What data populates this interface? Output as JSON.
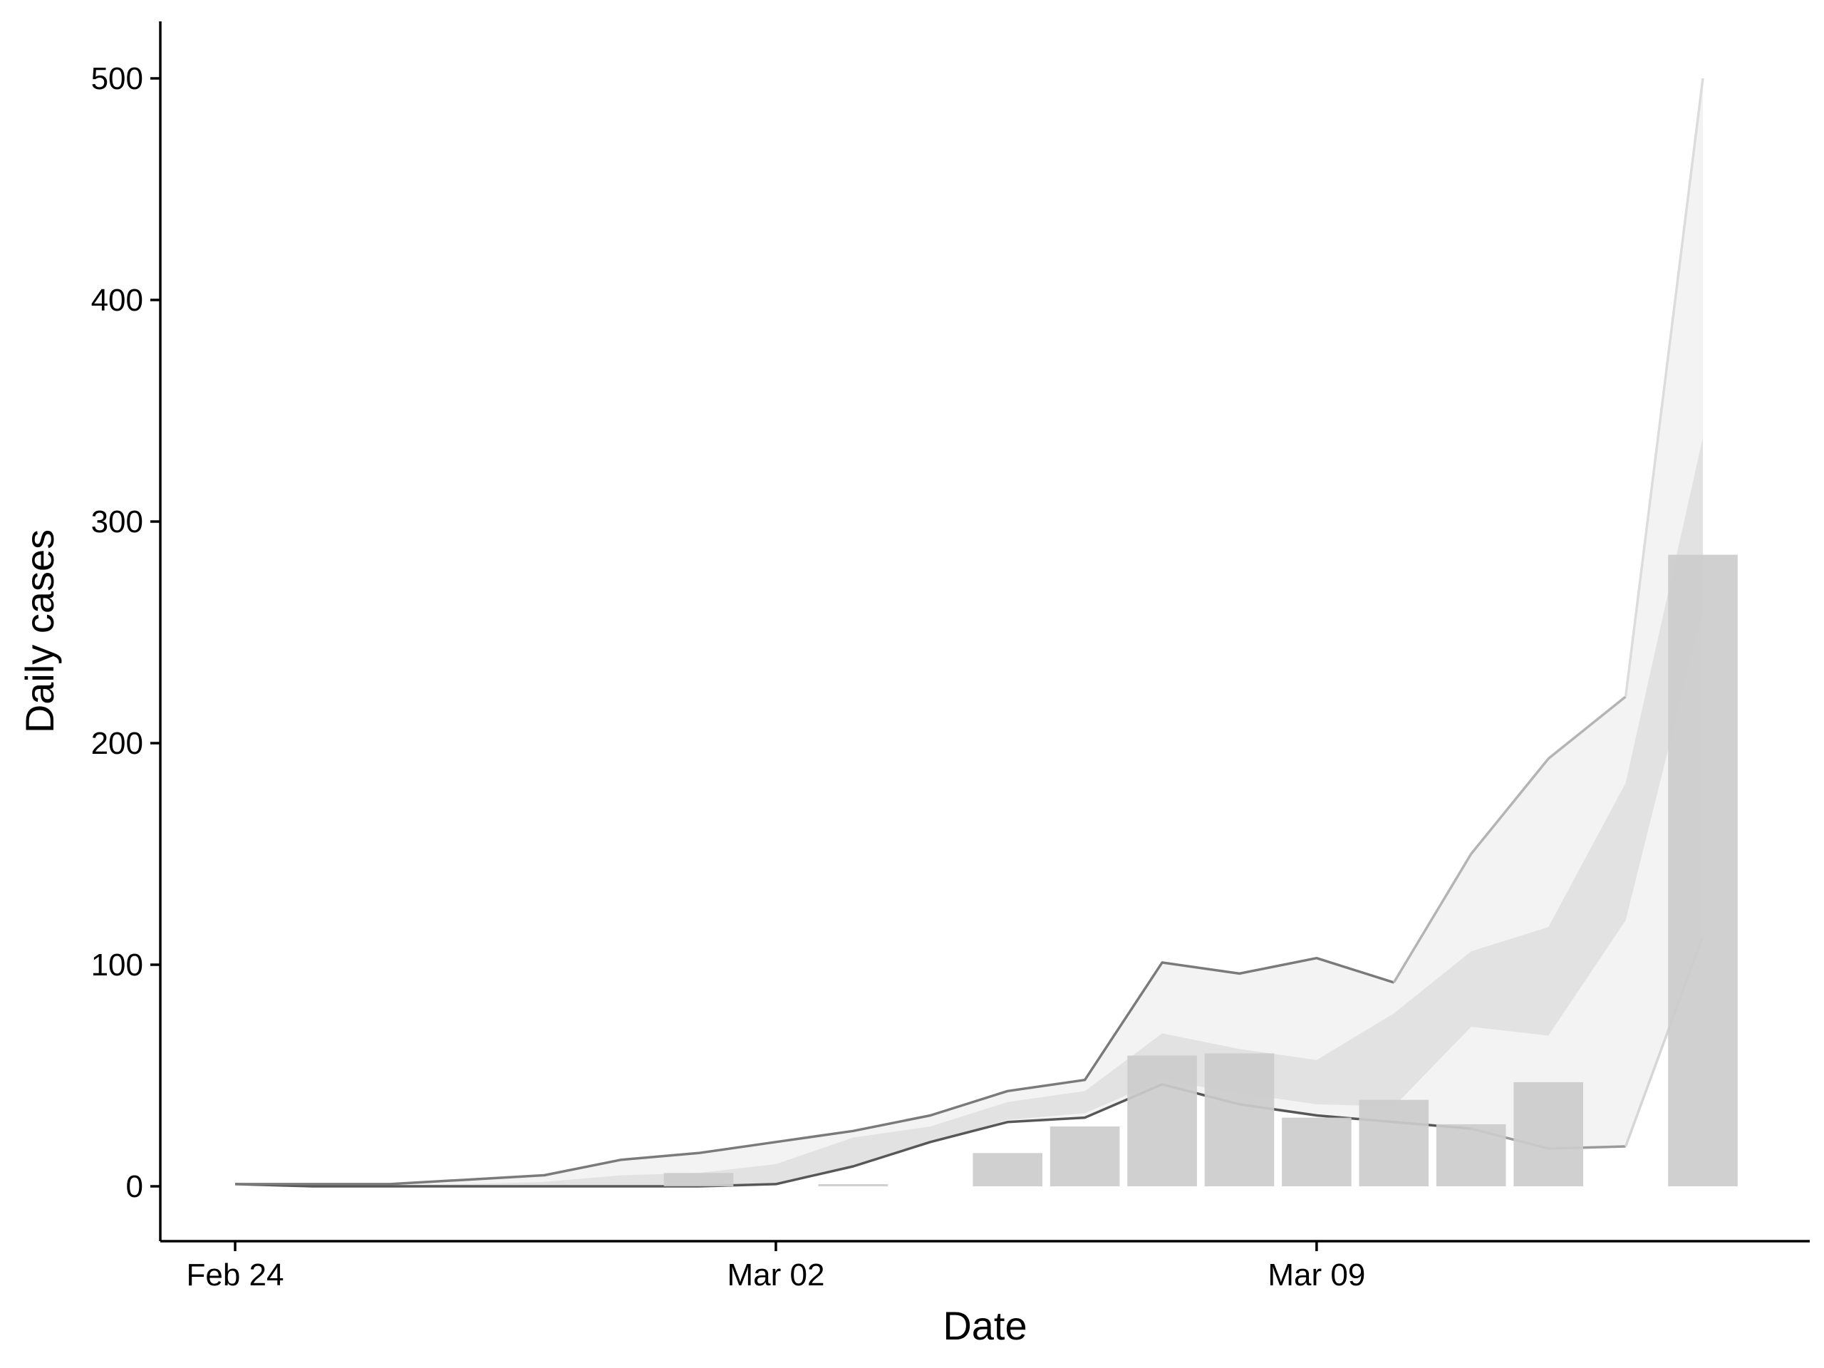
{
  "chart_data": {
    "type": "bar",
    "xlabel": "Date",
    "ylabel": "Daily cases",
    "xlim": [
      "2020-02-23",
      "2020-03-20"
    ],
    "ylim": [
      -25,
      525
    ],
    "x_ticks": [
      {
        "date": "2020-02-24",
        "label": "Feb 24"
      },
      {
        "date": "2020-03-02",
        "label": "Mar 02"
      },
      {
        "date": "2020-03-09",
        "label": "Mar 09"
      }
    ],
    "y_ticks": [
      0,
      100,
      200,
      300,
      400,
      500
    ],
    "grid": false,
    "legend": "none",
    "bars": {
      "name": "",
      "color": "#cccccc",
      "points": [
        {
          "date": "2020-03-01",
          "value": 6
        },
        {
          "date": "2020-03-02",
          "value": 0
        },
        {
          "date": "2020-03-03",
          "value": 1
        },
        {
          "date": "2020-03-05",
          "value": 15
        },
        {
          "date": "2020-03-06",
          "value": 27
        },
        {
          "date": "2020-03-07",
          "value": 59
        },
        {
          "date": "2020-03-08",
          "value": 60
        },
        {
          "date": "2020-03-09",
          "value": 31
        },
        {
          "date": "2020-03-10",
          "value": 39
        },
        {
          "date": "2020-03-11",
          "value": 28
        },
        {
          "date": "2020-03-12",
          "value": 47
        },
        {
          "date": "2020-03-14",
          "value": 285
        }
      ]
    },
    "bands": [
      {
        "name": "",
        "color": "#dcdcdc",
        "x": [
          "2020-02-24",
          "2020-02-25",
          "2020-02-26",
          "2020-02-27",
          "2020-02-28",
          "2020-02-29",
          "2020-03-01",
          "2020-03-02",
          "2020-03-03",
          "2020-03-04",
          "2020-03-05",
          "2020-03-06",
          "2020-03-07",
          "2020-03-08",
          "2020-03-09",
          "2020-03-10",
          "2020-03-11",
          "2020-03-12",
          "2020-03-13",
          "2020-03-14"
        ],
        "lower": [
          1,
          0,
          0,
          0,
          0,
          0,
          0,
          1,
          9,
          20,
          30,
          33,
          48,
          42,
          37,
          36,
          72,
          68,
          120,
          260
        ],
        "upper": [
          1,
          0.5,
          0.5,
          1,
          2,
          5,
          6,
          10,
          22,
          27,
          38,
          43,
          69,
          62,
          57,
          78,
          106,
          117,
          182,
          338
        ]
      },
      {
        "name": "",
        "color": "#efefef",
        "x": [
          "2020-02-24",
          "2020-02-25",
          "2020-02-26",
          "2020-02-27",
          "2020-02-28",
          "2020-02-29",
          "2020-03-01",
          "2020-03-02",
          "2020-03-03",
          "2020-03-04",
          "2020-03-05",
          "2020-03-06",
          "2020-03-07",
          "2020-03-08",
          "2020-03-09",
          "2020-03-10",
          "2020-03-11",
          "2020-03-12",
          "2020-03-13",
          "2020-03-14"
        ],
        "lower": [
          1,
          0,
          0,
          0,
          0,
          0,
          0,
          1,
          9,
          20,
          29,
          31,
          46,
          37,
          32,
          29,
          26,
          17,
          18,
          113
        ],
        "upper": [
          1,
          1,
          1,
          3,
          5,
          12,
          15,
          20,
          25,
          32,
          43,
          48,
          101,
          96,
          103,
          92,
          150,
          193,
          221,
          500
        ]
      }
    ],
    "lines": [
      {
        "name": "",
        "color": "#575757",
        "x": [
          "2020-02-24",
          "2020-02-25",
          "2020-02-26",
          "2020-02-27",
          "2020-02-28",
          "2020-02-29",
          "2020-03-01",
          "2020-03-02",
          "2020-03-03",
          "2020-03-04",
          "2020-03-05",
          "2020-03-06",
          "2020-03-07",
          "2020-03-08",
          "2020-03-09",
          "2020-03-10",
          "2020-03-11"
        ],
        "y": [
          1,
          0,
          0,
          0,
          0,
          0,
          0,
          1,
          9,
          20,
          29,
          31,
          46,
          37,
          32,
          29,
          26
        ]
      },
      {
        "name": "",
        "color": "#9a9a9a",
        "x": [
          "2020-03-11",
          "2020-03-12",
          "2020-03-13"
        ],
        "y": [
          26,
          17,
          18
        ]
      },
      {
        "name": "",
        "color": "#d6d6d6",
        "x": [
          "2020-03-13",
          "2020-03-14"
        ],
        "y": [
          18,
          113
        ]
      },
      {
        "name": "",
        "color": "#7a7a7a",
        "x": [
          "2020-02-24",
          "2020-02-25",
          "2020-02-26",
          "2020-02-27",
          "2020-02-28",
          "2020-02-29",
          "2020-03-01",
          "2020-03-02",
          "2020-03-03",
          "2020-03-04",
          "2020-03-05",
          "2020-03-06",
          "2020-03-07",
          "2020-03-08",
          "2020-03-09",
          "2020-03-10"
        ],
        "y": [
          1,
          1,
          1,
          3,
          5,
          12,
          15,
          20,
          25,
          32,
          43,
          48,
          101,
          96,
          103,
          92
        ]
      },
      {
        "name": "",
        "color": "#b4b4b4",
        "x": [
          "2020-03-10",
          "2020-03-11",
          "2020-03-12",
          "2020-03-13"
        ],
        "y": [
          92,
          150,
          193,
          221
        ]
      },
      {
        "name": "",
        "color": "#dcdcdc",
        "x": [
          "2020-03-13",
          "2020-03-14"
        ],
        "y": [
          221,
          500
        ]
      }
    ]
  }
}
